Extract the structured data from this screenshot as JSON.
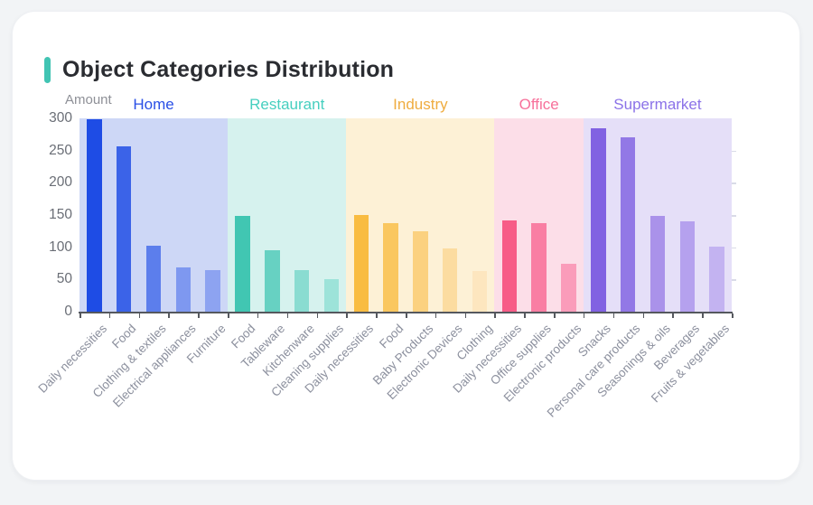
{
  "card": {
    "title": "Object Categories Distribution",
    "accent_color": "#41c4b3"
  },
  "chart_data": {
    "type": "bar",
    "title": "Object Categories Distribution",
    "xlabel": "",
    "ylabel": "Amount",
    "ylim": [
      0,
      300
    ],
    "yticks": [
      0,
      50,
      100,
      150,
      200,
      250,
      300
    ],
    "grid": false,
    "legend_position": "none",
    "group_labels_position": "top",
    "axis_color": "#55585e",
    "groups": [
      {
        "name": "Home",
        "label_color": "#2a4fe6",
        "band_color": "#cdd7f6",
        "items": [
          {
            "label": "Daily necessities",
            "value": 298,
            "color": "#1e4ce5"
          },
          {
            "label": "Food",
            "value": 257,
            "color": "#3b63e8"
          },
          {
            "label": "Clothing & textiles",
            "value": 102,
            "color": "#5c7eec"
          },
          {
            "label": "Electrical appliances",
            "value": 68,
            "color": "#7e98f0"
          },
          {
            "label": "Furniture",
            "value": 64,
            "color": "#8da3f1"
          }
        ]
      },
      {
        "name": "Restaurant",
        "label_color": "#46cfbf",
        "band_color": "#d6f2ee",
        "items": [
          {
            "label": "Food",
            "value": 148,
            "color": "#41c6b2"
          },
          {
            "label": "Tableware",
            "value": 96,
            "color": "#67d1c2"
          },
          {
            "label": "Kitchenware",
            "value": 64,
            "color": "#8adcd1"
          },
          {
            "label": "Cleaning supplies",
            "value": 50,
            "color": "#9de3d9"
          }
        ]
      },
      {
        "name": "Industry",
        "label_color": "#efac3f",
        "band_color": "#fdf1d6",
        "items": [
          {
            "label": "Daily necessities",
            "value": 150,
            "color": "#f9bc41"
          },
          {
            "label": "Food",
            "value": 138,
            "color": "#fac75f"
          },
          {
            "label": "Baby Products",
            "value": 125,
            "color": "#fbd180"
          },
          {
            "label": "Electronic Devices",
            "value": 98,
            "color": "#fcdca0"
          },
          {
            "label": "Clothing",
            "value": 63,
            "color": "#fde6bf"
          }
        ]
      },
      {
        "name": "Office",
        "label_color": "#f7709a",
        "band_color": "#fcdee8",
        "items": [
          {
            "label": "Daily necessities",
            "value": 142,
            "color": "#f75c87"
          },
          {
            "label": "Office supplies",
            "value": 138,
            "color": "#f97ea3"
          },
          {
            "label": "Electronic products",
            "value": 74,
            "color": "#fa9cba"
          }
        ]
      },
      {
        "name": "Supermarket",
        "label_color": "#8b72e8",
        "band_color": "#e5dff8",
        "items": [
          {
            "label": "Snacks",
            "value": 285,
            "color": "#8162e2"
          },
          {
            "label": "Personal care products",
            "value": 270,
            "color": "#9278e6"
          },
          {
            "label": "Seasonings & oils",
            "value": 148,
            "color": "#aa92ea"
          },
          {
            "label": "Beverages",
            "value": 140,
            "color": "#b5a1ee"
          },
          {
            "label": "Fruits & vegetables",
            "value": 101,
            "color": "#c3b3f1"
          }
        ]
      }
    ]
  }
}
